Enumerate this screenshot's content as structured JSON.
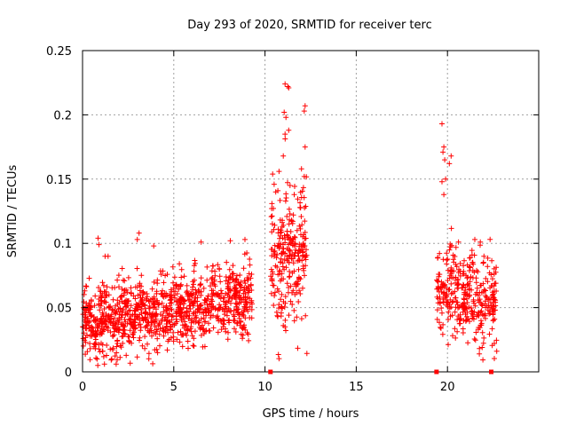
{
  "chart_data": {
    "type": "scatter",
    "title": "Day 293 of 2020, SRMTID for receiver terc",
    "xlabel": "GPS time / hours",
    "ylabel": "SRMTID / TECUs",
    "xlim": [
      0,
      25
    ],
    "ylim": [
      0,
      0.25
    ],
    "grid": true,
    "x_ticks": [
      0,
      5,
      10,
      15,
      20
    ],
    "x_tick_labels": [
      "0",
      "5",
      "10",
      "15",
      "20"
    ],
    "y_ticks": [
      0,
      0.05,
      0.1,
      0.15,
      0.2,
      0.25
    ],
    "y_tick_labels": [
      "0",
      "0.05",
      "0.1",
      "0.15",
      "0.2",
      "0.25"
    ],
    "marker": "+",
    "color": "#ff0000",
    "clusters": [
      {
        "x_start": 0.0,
        "x_end": 9.3,
        "base_start": 0.038,
        "base_end": 0.058,
        "spread": 0.018,
        "count": 1100,
        "max_peak": 0.108
      },
      {
        "x_start": 10.3,
        "x_end": 12.3,
        "base_start": 0.085,
        "base_end": 0.09,
        "spread": 0.035,
        "count": 260,
        "max_peak": 0.224
      },
      {
        "x_start": 19.4,
        "x_end": 22.7,
        "base_start": 0.065,
        "base_end": 0.05,
        "spread": 0.022,
        "count": 360,
        "max_peak": 0.193
      }
    ],
    "peaks": [
      {
        "x": 11.1,
        "y": 0.224
      },
      {
        "x": 11.25,
        "y": 0.222
      },
      {
        "x": 11.3,
        "y": 0.221
      },
      {
        "x": 12.2,
        "y": 0.207
      },
      {
        "x": 12.15,
        "y": 0.203
      },
      {
        "x": 11.05,
        "y": 0.202
      },
      {
        "x": 11.15,
        "y": 0.198
      },
      {
        "x": 11.3,
        "y": 0.188
      },
      {
        "x": 11.1,
        "y": 0.185
      },
      {
        "x": 12.2,
        "y": 0.175
      },
      {
        "x": 11.0,
        "y": 0.168
      },
      {
        "x": 12.0,
        "y": 0.158
      },
      {
        "x": 12.15,
        "y": 0.152
      },
      {
        "x": 10.5,
        "y": 0.146
      },
      {
        "x": 11.6,
        "y": 0.138
      },
      {
        "x": 19.7,
        "y": 0.193
      },
      {
        "x": 19.8,
        "y": 0.175
      },
      {
        "x": 19.75,
        "y": 0.171
      },
      {
        "x": 19.85,
        "y": 0.165
      },
      {
        "x": 20.2,
        "y": 0.168
      },
      {
        "x": 20.1,
        "y": 0.162
      },
      {
        "x": 19.9,
        "y": 0.15
      },
      {
        "x": 19.7,
        "y": 0.148
      },
      {
        "x": 19.8,
        "y": 0.138
      },
      {
        "x": 3.1,
        "y": 0.108
      },
      {
        "x": 3.0,
        "y": 0.103
      },
      {
        "x": 0.85,
        "y": 0.104
      },
      {
        "x": 0.9,
        "y": 0.099
      },
      {
        "x": 8.1,
        "y": 0.102
      },
      {
        "x": 8.9,
        "y": 0.103
      },
      {
        "x": 6.5,
        "y": 0.101
      },
      {
        "x": 3.9,
        "y": 0.098
      },
      {
        "x": 1.4,
        "y": 0.09
      },
      {
        "x": 21.5,
        "y": 0.103
      },
      {
        "x": 21.8,
        "y": 0.101
      },
      {
        "x": 22.0,
        "y": 0.09
      },
      {
        "x": 0.8,
        "y": 0.01
      },
      {
        "x": 1.6,
        "y": 0.01
      },
      {
        "x": 22.7,
        "y": 0.016
      },
      {
        "x": 11.1,
        "y": 0.035
      },
      {
        "x": 10.7,
        "y": 0.043
      }
    ],
    "gap_markers": [
      {
        "x": 10.3,
        "y": 0.0
      },
      {
        "x": 19.4,
        "y": 0.0
      },
      {
        "x": 22.4,
        "y": 0.0
      }
    ]
  }
}
